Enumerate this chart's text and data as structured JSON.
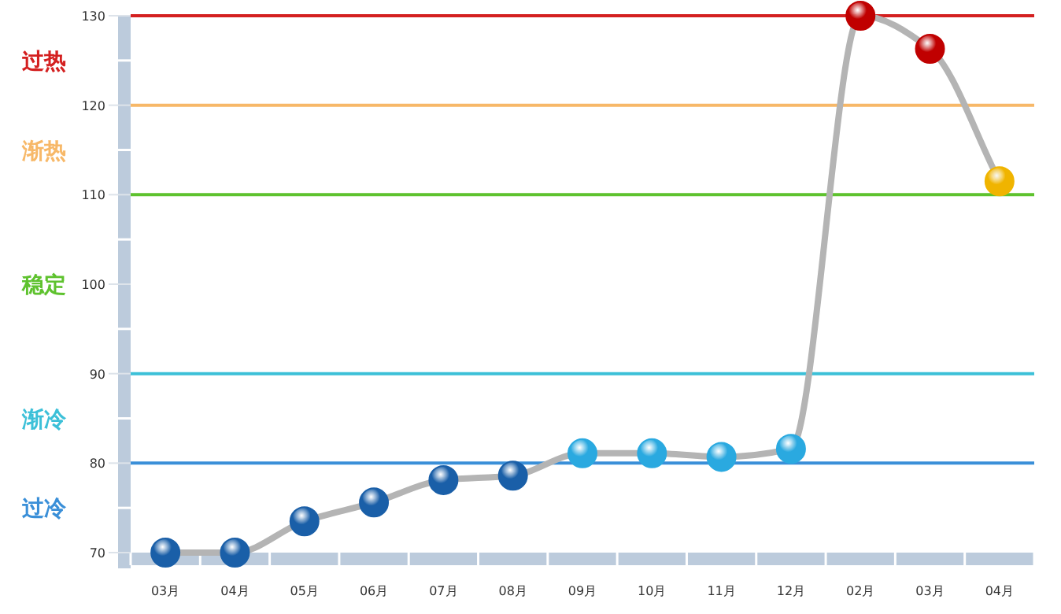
{
  "chart_data": {
    "type": "line",
    "categories": [
      "03月",
      "04月",
      "05月",
      "06月",
      "07月",
      "08月",
      "09月",
      "10月",
      "11月",
      "12月",
      "02月",
      "03月",
      "04月"
    ],
    "series": [
      {
        "color": "#b4b4b4",
        "values": [
          70,
          70,
          73.5,
          75.6,
          78.1,
          78.6,
          81.1,
          81.1,
          80.7,
          81.6,
          130,
          126.3,
          111.5
        ],
        "colors": [
          "#1a5fa8",
          "#1a5fa8",
          "#1a5fa8",
          "#1a5fa8",
          "#1a5fa8",
          "#1a5fa8",
          "#2aa9e0",
          "#2aa9e0",
          "#2aa9e0",
          "#2aa9e0",
          "#c00000",
          "#c00000",
          "#f0b400"
        ]
      }
    ],
    "ylim": [
      70,
      130
    ],
    "yticks": [
      70,
      80,
      90,
      100,
      110,
      120,
      130
    ],
    "marker": "circle",
    "line_style": "solid",
    "grid": false,
    "ref_lines": [
      {
        "axis": "y",
        "value": 130,
        "label": "过热",
        "color": "#d42020"
      },
      {
        "axis": "y",
        "value": 120,
        "label": "渐热",
        "color": "#f7b868"
      },
      {
        "axis": "y",
        "value": 110,
        "label": "稳定",
        "color": "#5ec22e"
      },
      {
        "axis": "y",
        "value": 90,
        "label": "渐冷",
        "color": "#3cc0d8"
      },
      {
        "axis": "y",
        "value": 80,
        "label": "过冷",
        "color": "#3a8fd8"
      }
    ]
  }
}
